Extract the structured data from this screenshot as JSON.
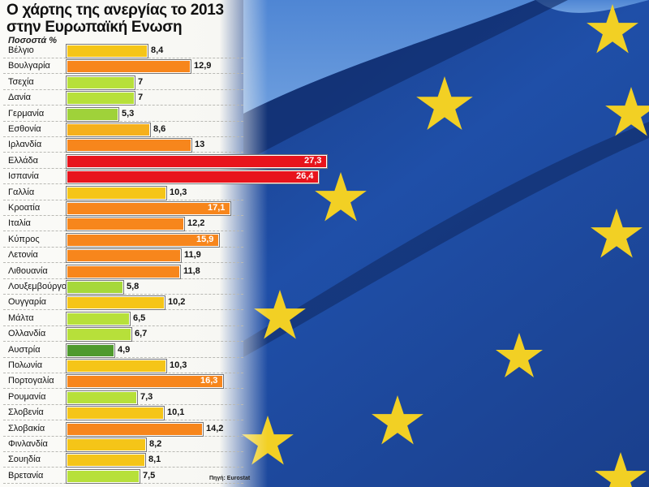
{
  "chart_data": {
    "type": "bar",
    "orientation": "horizontal",
    "title": "Ο χάρτης της ανεργίας το 2013 στην Ευρωπαϊκή Ενωση",
    "subtitle": "Ποσοστά %",
    "source": "Πηγή: Eurostat",
    "xlabel": "",
    "ylabel": "",
    "grid": true,
    "legend": "none",
    "categories": [
      "Βέλγιο",
      "Βουλγαρία",
      "Τσεχία",
      "Δανία",
      "Γερμανία",
      "Εσθονία",
      "Ιρλανδία",
      "Ελλάδα",
      "Ισπανία",
      "Γαλλία",
      "Κροατία",
      "Ιταλία",
      "Κύπρος",
      "Λετονία",
      "Λιθουανία",
      "Λουξεμβούργο",
      "Ουγγαρία",
      "Μάλτα",
      "Ολλανδία",
      "Αυστρία",
      "Πολωνία",
      "Πορτογαλία",
      "Ρουμανία",
      "Σλοβενία",
      "Σλοβακία",
      "Φινλανδία",
      "Σουηδία",
      "Βρετανία"
    ],
    "values": [
      8.4,
      12.9,
      7,
      7,
      5.3,
      8.6,
      13,
      27.3,
      26.4,
      10.3,
      17.1,
      12.2,
      15.9,
      11.9,
      11.8,
      5.8,
      10.2,
      6.5,
      6.7,
      4.9,
      10.3,
      16.3,
      7.3,
      10.1,
      14.2,
      8.2,
      8.1,
      7.5
    ],
    "value_labels": [
      "8,4",
      "12,9",
      "7",
      "7",
      "5,3",
      "8,6",
      "13",
      "27,3",
      "26,4",
      "10,3",
      "17,1",
      "12,2",
      "15,9",
      "11,9",
      "11,8",
      "5,8",
      "10,2",
      "6,5",
      "6,7",
      "4,9",
      "10,3",
      "16,3",
      "7,3",
      "10,1",
      "14,2",
      "8,2",
      "8,1",
      "7,5"
    ],
    "colors": [
      "#f5c518",
      "#f7861c",
      "#b7e03a",
      "#b7e03a",
      "#9fd23a",
      "#f5b01c",
      "#f7861c",
      "#e8141c",
      "#e8141c",
      "#f5c518",
      "#f7861c",
      "#f7861c",
      "#f7861c",
      "#f7861c",
      "#f7861c",
      "#a6d83a",
      "#f5c518",
      "#b7e03a",
      "#b7e03a",
      "#4f9a2e",
      "#f5c518",
      "#f7861c",
      "#b7e03a",
      "#f5c518",
      "#f7861c",
      "#f5c518",
      "#f5c518",
      "#b7e03a"
    ],
    "xlim": [
      0,
      30
    ]
  },
  "background": {
    "description": "EU flag with yellow stars on blue",
    "flag_blue": "#1f4fa8",
    "sky_blue": "#5b8fd6",
    "star_yellow": "#f2d024"
  }
}
